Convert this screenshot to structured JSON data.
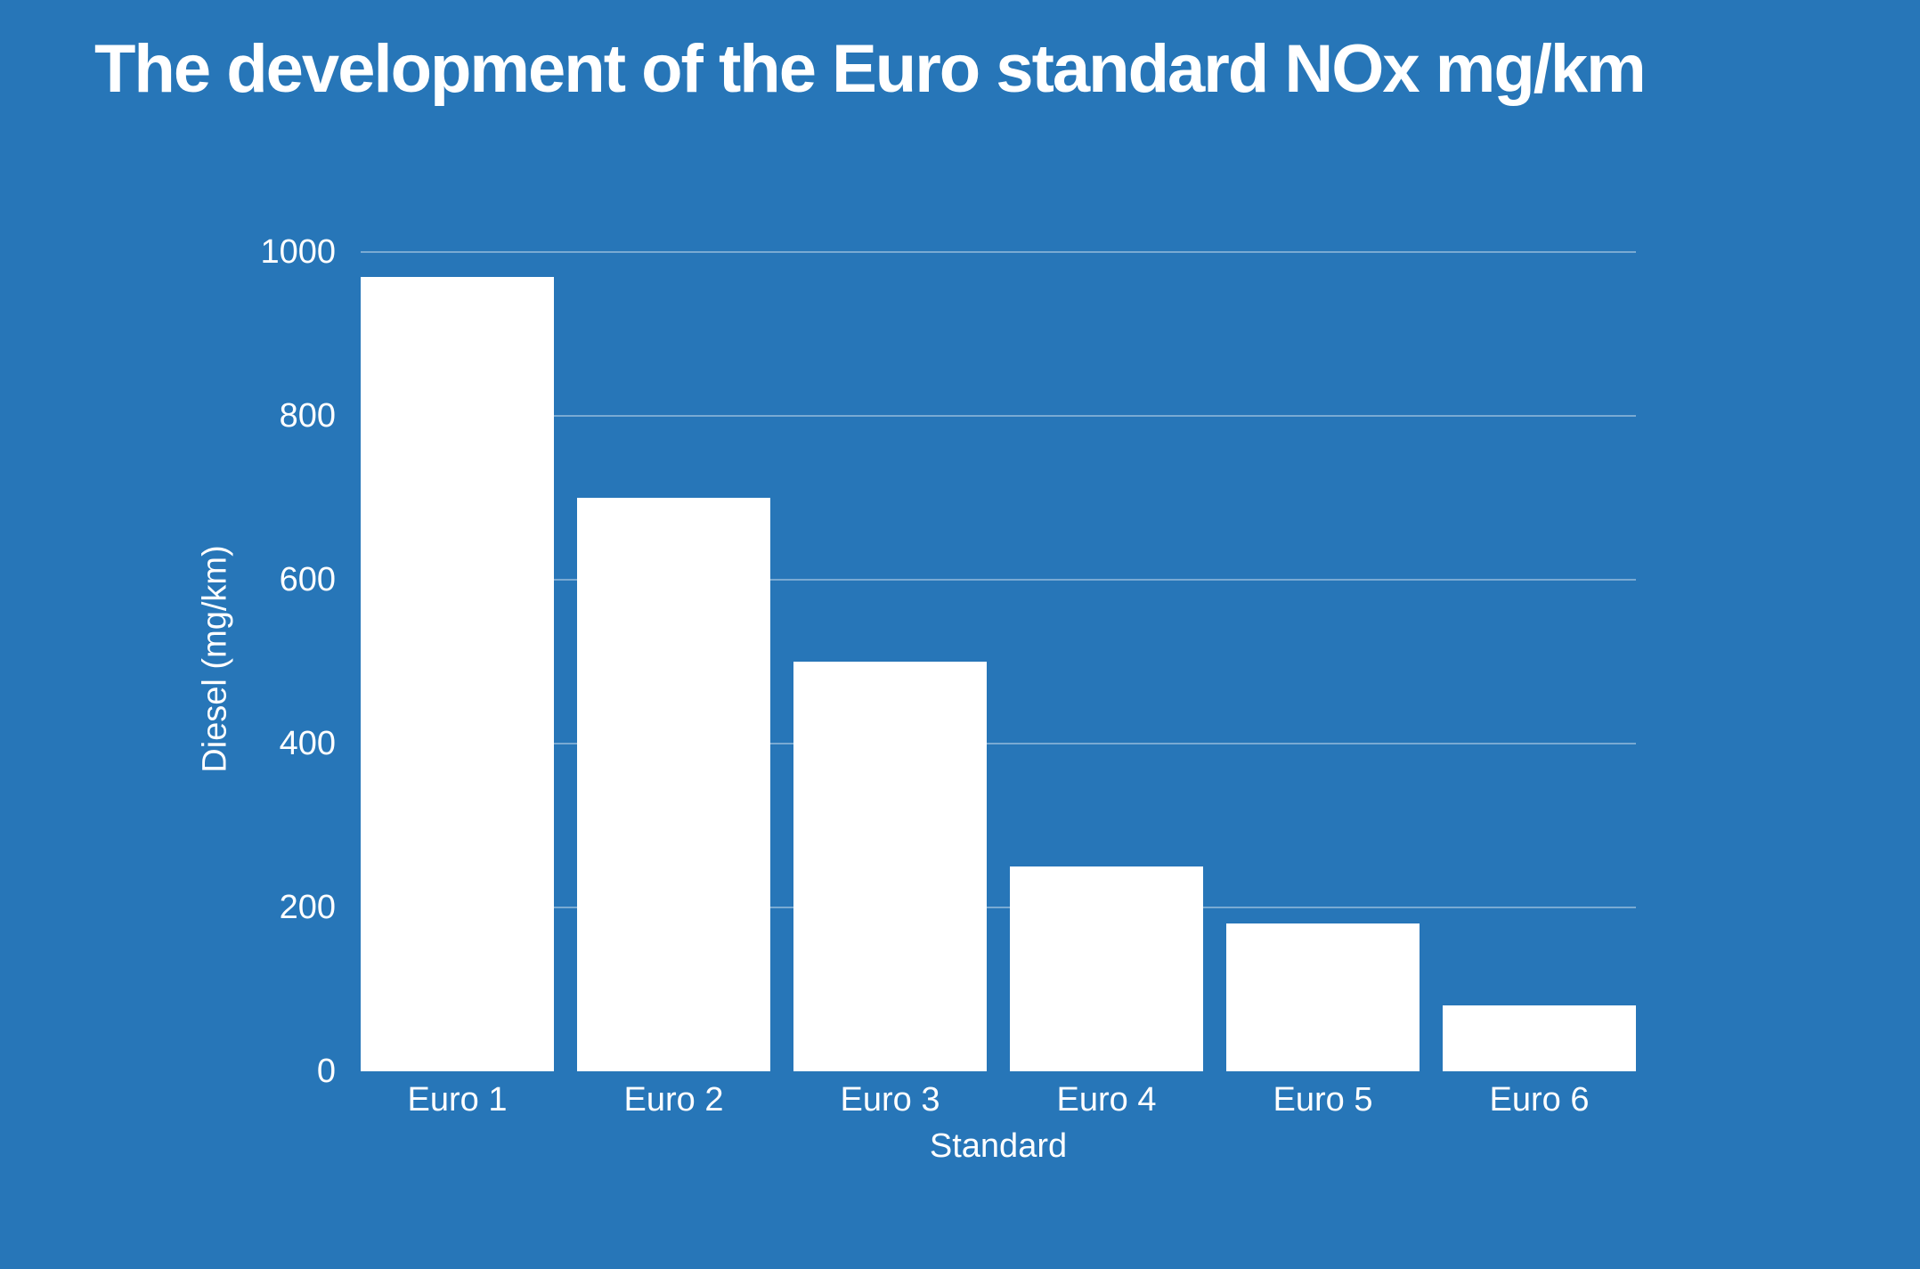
{
  "chart_data": {
    "type": "bar",
    "title": "The development of the Euro standard NOx mg/km",
    "xlabel": "Standard",
    "ylabel": "Diesel (mg/km)",
    "categories": [
      "Euro 1",
      "Euro 2",
      "Euro 3",
      "Euro 4",
      "Euro 5",
      "Euro 6"
    ],
    "values": [
      970,
      700,
      500,
      250,
      180,
      80
    ],
    "ylim": [
      0,
      1000
    ],
    "yticks": [
      0,
      200,
      400,
      600,
      800,
      1000
    ],
    "grid": "horizontal",
    "legend": "none",
    "colors": {
      "background": "#2776b8",
      "bar": "#ffffff",
      "gridline": "rgba(255,255,255,0.38)",
      "text": "#ffffff"
    }
  }
}
